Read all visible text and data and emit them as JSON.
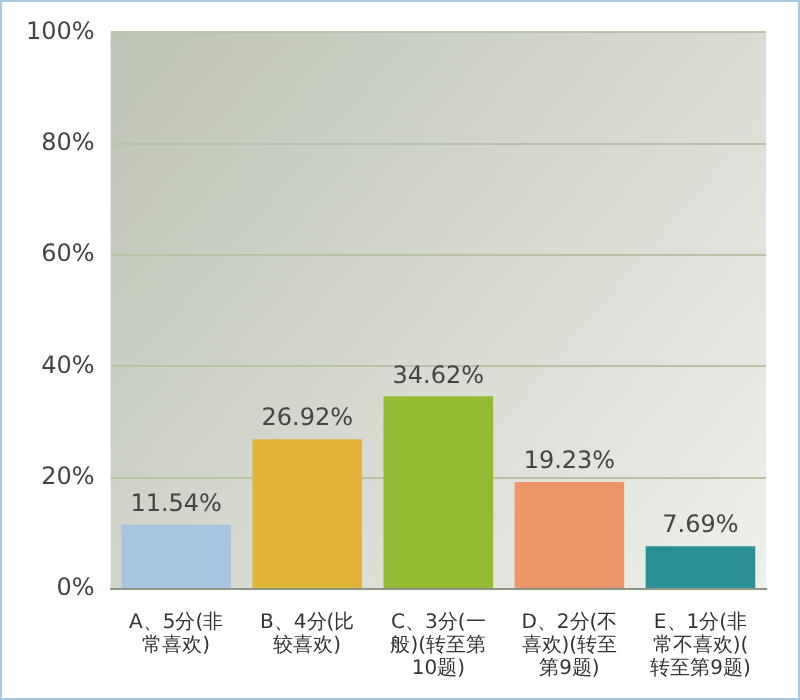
{
  "chart_data": {
    "type": "bar",
    "categories": [
      "A、5分(非常喜欢)",
      "B、4分(比较喜欢)",
      "C、3分(一般)(转至第10题)",
      "D、2分(不喜欢)(转至第9题)",
      "E、1分(非常不喜欢)(转至第9题)"
    ],
    "values": [
      11.54,
      26.92,
      34.62,
      19.23,
      7.69
    ],
    "colors": [
      "#a9c3e3",
      "#e2b43a",
      "#93bb34",
      "#ef956a",
      "#2a8f96"
    ],
    "value_labels": [
      "11.54%",
      "26.92%",
      "34.62%",
      "19.23%",
      "7.69%"
    ],
    "ylim": [
      0,
      100
    ],
    "yticks": [
      {
        "value": 0,
        "label": "0%"
      },
      {
        "value": 20,
        "label": "20%"
      },
      {
        "value": 40,
        "label": "40%"
      },
      {
        "value": 60,
        "label": "60%"
      },
      {
        "value": 80,
        "label": "80%"
      },
      {
        "value": 100,
        "label": "100%"
      }
    ],
    "grid": "y",
    "legend": false
  }
}
